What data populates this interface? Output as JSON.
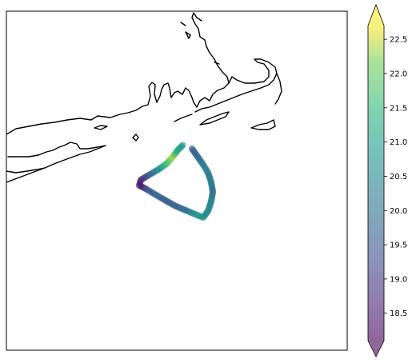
{
  "figure": {
    "type": "map-scatter-with-colorbar",
    "track_shape": "closed loop (triangular survey track) offshore south of the coastline",
    "colormap": "viridis",
    "marker_alpha": 0.6
  },
  "colorbar": {
    "min": 18.1,
    "max": 22.7,
    "extend": "both",
    "ticks": [
      "18.5",
      "19.0",
      "19.5",
      "20.0",
      "20.5",
      "21.0",
      "21.5",
      "22.0",
      "22.5"
    ],
    "tick_values": [
      18.5,
      19.0,
      19.5,
      20.0,
      20.5,
      21.0,
      21.5,
      22.0,
      22.5
    ]
  },
  "colors": {
    "low": "#440154",
    "mid": "#21918c",
    "high": "#fde725",
    "coastline": "#000000",
    "frame": "#000000"
  }
}
